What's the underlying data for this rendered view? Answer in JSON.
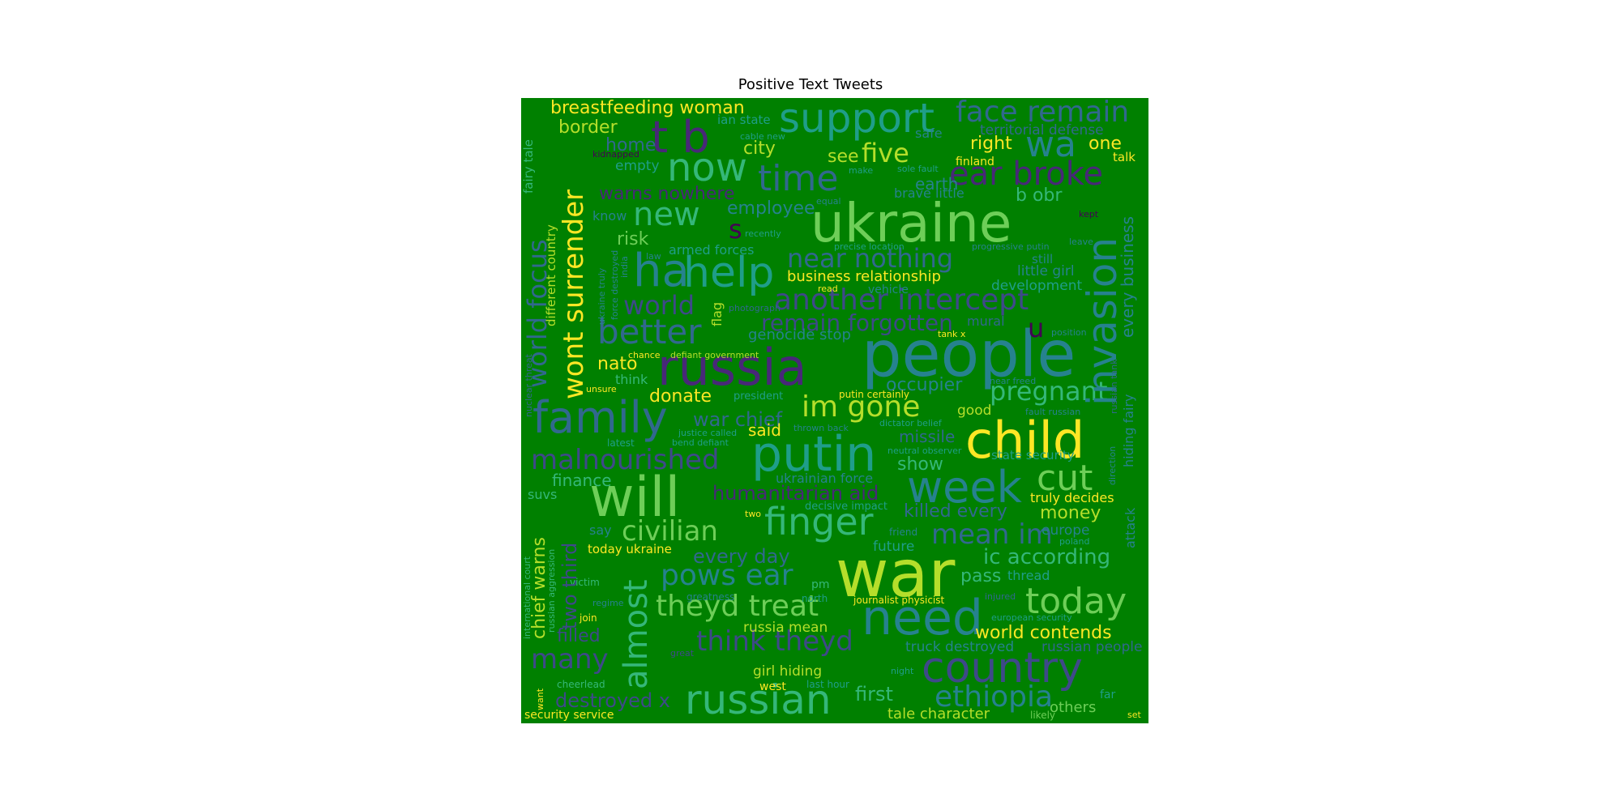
{
  "title": "Positive Text Tweets",
  "palette": {
    "background": "#008000",
    "yellow": "#fde725",
    "lime": "#b5de2b",
    "light_green": "#6ece58",
    "mint": "#35b779",
    "teal_green": "#1f9e89",
    "teal": "#26828e",
    "blue": "#31688e",
    "indigo": "#3e4989",
    "purple": "#482878",
    "dark": "#440154"
  },
  "words": {
    "war": "war",
    "people": "people",
    "ukraine": "ukraine",
    "russia": "russia",
    "will": "will",
    "child": "child",
    "putin": "putin",
    "need": "need",
    "family": "family",
    "country": "country",
    "russian": "russian",
    "support": "support",
    "now": "now",
    "help": "help",
    "week": "week",
    "today": "today",
    "finger": "finger",
    "t_b": "t b",
    "ha": "ha",
    "face_remain": "face remain",
    "ear_broke": "ear broke",
    "time": "time",
    "invasion": "invasion",
    "another_intercept": "another intercept",
    "better": "better",
    "malnourished": "malnourished",
    "wont_surrender": "wont surrender",
    "world_focus": "world focus",
    "almost": "almost",
    "cut": "cut",
    "new": "new",
    "wa": "wa",
    "im_gone": "im gone",
    "civilian": "civilian",
    "theyd_treat": "theyd treat",
    "pows_ear": "pows ear",
    "think_theyd": "think theyd",
    "ethiopia": "ethiopia",
    "mean_im": "mean im",
    "ic_according": "ic according",
    "pregnant": "pregnant",
    "many": "many",
    "near_nothing": "near nothing",
    "remain_forgotten": "remain forgotten",
    "five": "five",
    "world": "world",
    "breastfeeding_woman": "breastfeeding woman",
    "chief_warns": "chief warns",
    "two_third": "two third",
    "world_contends": "world contends",
    "destroyed_x": "destroyed x",
    "humanitarian_aid": "humanitarian aid",
    "war_chief": "war chief",
    "s": "s",
    "u": "u",
    "killed_every": "killed every",
    "every_day": "every day",
    "b_obr": "b obr",
    "warns_nowhere": "warns nowhere",
    "every_business": "every business",
    "right": "right",
    "one": "one",
    "first": "first",
    "occupier": "occupier",
    "nato": "nato",
    "donate": "donate",
    "border": "border",
    "city": "city",
    "home": "home",
    "see": "see",
    "risk": "risk",
    "employee": "employee",
    "money": "money",
    "filled": "filled",
    "pass": "pass",
    "show": "show",
    "missile": "missile",
    "finance": "finance",
    "tale_character": "tale character",
    "others": "others",
    "genocide_stop": "genocide stop",
    "business_relationship": "business relationship",
    "territorial_defense": "territorial defense",
    "little_girl": "little girl",
    "development": "development",
    "earth": "earth",
    "truck_destroyed": "truck destroyed",
    "russian_people": "russian people",
    "girl_hiding": "girl hiding",
    "truly_decides": "truly decides",
    "said": "said",
    "russia_mean": "russia mean",
    "europe": "europe",
    "future": "future",
    "armed_forces": "armed forces",
    "ukrainian_force": "ukrainian force",
    "today_ukraine": "today ukraine",
    "talk": "talk",
    "fairy_tale": "fairy tale",
    "different_country": "different country",
    "empty": "empty",
    "flag": "flag",
    "good": "good",
    "attack": "attack",
    "hiding_fairy": "hiding fairy",
    "suvs": "suvs",
    "mural": "mural",
    "thread": "thread",
    "security_service": "security service",
    "west": "west",
    "brave_little": "brave little",
    "safe": "safe",
    "state_security": "state security",
    "ian_state": "ian state",
    "still": "still",
    "finland": "finland",
    "think": "think",
    "say": "say",
    "know": "know",
    "russian_aggression": "russian aggression",
    "international_court": "international court",
    "expect_membership": "expect membership",
    "victim": "victim",
    "join": "join",
    "far": "far",
    "likely": "likely",
    "set": "set",
    "cheerlead": "cheerlead",
    "want": "want",
    "last_hour": "last hour",
    "journalist_physicist": "journalist physicist",
    "greatness": "greatness",
    "north": "north",
    "pm": "pm",
    "friend": "friend",
    "decisive_impact": "decisive impact",
    "two": "two",
    "putin_certainly": "putin certainly",
    "president": "president",
    "chance": "chance",
    "defiant_government": "defiant government",
    "unsure": "unsure",
    "justice_called": "justice called",
    "bend_defiant": "bend defiant",
    "thrown_back": "thrown back",
    "dictator_belief": "dictator belief",
    "neutral_observer": "neutral observer",
    "tank_x": "tank x",
    "read": "read",
    "vehicle": "vehicle",
    "photograph": "photograph",
    "progressive_putin": "progressive putin",
    "precise_location": "precise location",
    "recently": "recently",
    "law": "law",
    "equal": "equal",
    "make": "make",
    "sole_fault": "sole fault",
    "cable_new": "cable new",
    "kidnapped": "kidnapped",
    "kept": "kept",
    "leave": "leave",
    "position": "position",
    "injured": "injured",
    "poland": "poland",
    "european_security": "european security",
    "great": "great",
    "night": "night",
    "regime": "regime",
    "india": "india",
    "ukraine_truly": "ukraine truly",
    "force_destroyed": "force destroyed",
    "nuclear_threat": "nuclear threat",
    "near_freed": "near freed",
    "fault_russian": "fault russian",
    "russian_tank": "russian tank",
    "direction": "direction",
    "latest": "latest"
  }
}
